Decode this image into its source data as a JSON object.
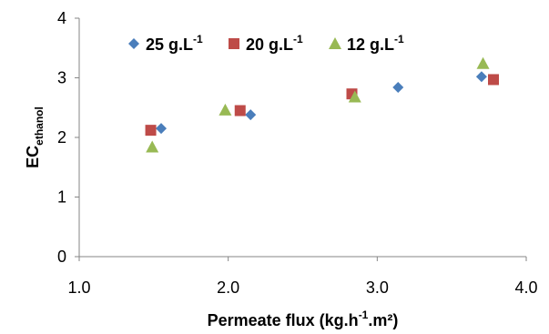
{
  "chart_data": {
    "type": "scatter",
    "xlabel": {
      "base": "Permeate flux (kg.h",
      "sup": "-1",
      "rest": ".m²)"
    },
    "ylabel": {
      "base": "EC",
      "sub": "ethanol"
    },
    "xlim": [
      1.0,
      4.0
    ],
    "ylim": [
      0,
      4
    ],
    "x_ticks": [
      "1.0",
      "2.0",
      "3.0",
      "4.0"
    ],
    "y_ticks": [
      "0",
      "1",
      "2",
      "3",
      "4"
    ],
    "grid": false,
    "legend_position": "top",
    "series": [
      {
        "name": "25 g.L-1",
        "label_base": "25 g.L",
        "label_sup": "-1",
        "marker": "diamond",
        "color": "#4A7EBB",
        "points": [
          [
            1.55,
            2.15
          ],
          [
            2.15,
            2.38
          ],
          [
            3.14,
            2.84
          ],
          [
            3.7,
            3.02
          ]
        ]
      },
      {
        "name": "20 g.L-1",
        "label_base": "20 g.L",
        "label_sup": "-1",
        "marker": "square",
        "color": "#BE4B48",
        "points": [
          [
            1.48,
            2.12
          ],
          [
            2.08,
            2.45
          ],
          [
            2.83,
            2.73
          ],
          [
            3.78,
            2.97
          ]
        ]
      },
      {
        "name": "12 g.L-1",
        "label_base": "12 g.L",
        "label_sup": "-1",
        "marker": "triangle",
        "color": "#98B954",
        "points": [
          [
            1.49,
            1.84
          ],
          [
            1.98,
            2.46
          ],
          [
            2.85,
            2.68
          ],
          [
            3.71,
            3.24
          ]
        ]
      }
    ]
  }
}
